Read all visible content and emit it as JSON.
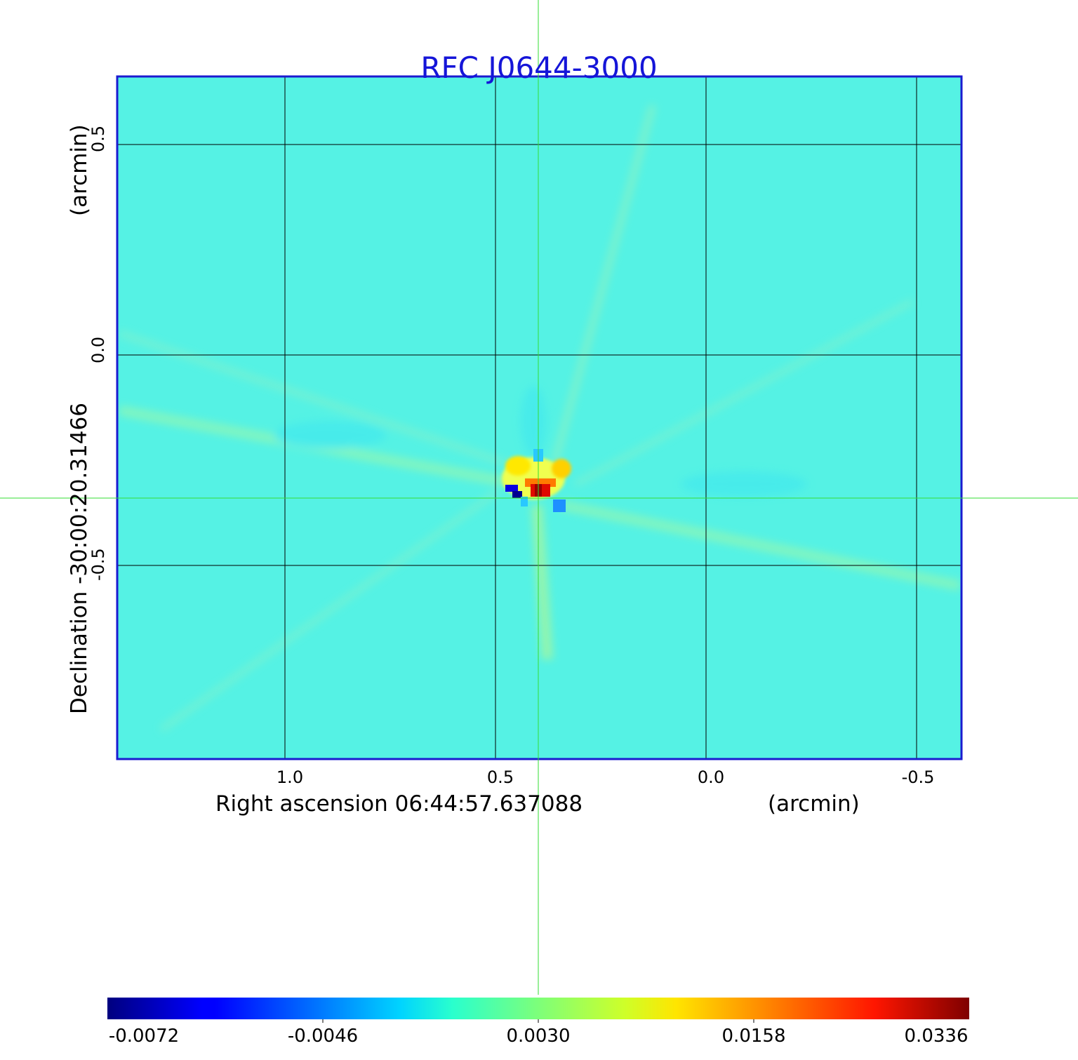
{
  "chart_data": {
    "type": "heatmap",
    "title": "RFC J0644-3000",
    "xlabel": "Right ascension  06:44:57.637088",
    "xunit": "(arcmin)",
    "ylabel": "Declination  -30:00:20.31466",
    "yunit": "(arcmin)",
    "x_ticks": [
      "1.0",
      "0.5",
      "0.0",
      "-0.5"
    ],
    "y_ticks": [
      "0.5",
      "0.0",
      "-0.5"
    ],
    "xlim": [
      1.4,
      -0.61
    ],
    "ylim": [
      -0.96,
      0.66
    ],
    "grid": true,
    "crosshair": {
      "x": 0.4,
      "y": -0.34
    },
    "colorbar": {
      "colormap": "jet",
      "range": [
        -0.0072,
        0.0336
      ],
      "tick_labels": [
        "-0.0072",
        "-0.0046",
        "0.0030",
        "0.0158",
        "0.0336"
      ]
    },
    "features": [
      {
        "name": "source",
        "x": 0.4,
        "y": -0.33,
        "value": 0.0336
      },
      {
        "name": "negative lobe",
        "x": 0.45,
        "y": -0.33,
        "value": -0.0072
      },
      {
        "name": "negative lobe",
        "x": 0.35,
        "y": -0.36,
        "value": -0.0046
      },
      {
        "name": "sidelobe",
        "x": 0.48,
        "y": -0.27,
        "value": 0.0158
      }
    ]
  },
  "colors": {
    "title": "#1515d8",
    "frame": "#1b1bd0",
    "crosshair": "#33dd33",
    "background_map": "#55f2e4"
  }
}
